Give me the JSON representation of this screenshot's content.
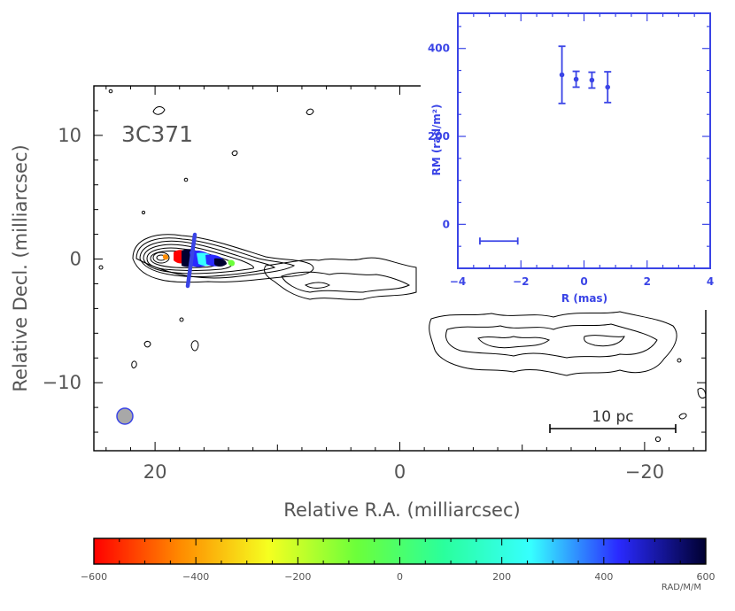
{
  "chart_data": [
    {
      "type": "contour-map",
      "title": "",
      "source_label": "3C371",
      "xlabel": "Relative R.A. (milliarcsec)",
      "ylabel": "Relative Decl. (milliarcsec)",
      "xlim": [
        25,
        -25
      ],
      "ylim": [
        -15.5,
        14
      ],
      "x_ticks": [
        20,
        0,
        -20
      ],
      "y_ticks": [
        10,
        0,
        -10
      ],
      "scalebar_label": "10 pc",
      "colorbar": {
        "min": -600,
        "max": 600,
        "ticks": [
          -600,
          -400,
          -200,
          0,
          200,
          400,
          600
        ],
        "unit": "RAD/M/M",
        "colors": [
          "#ff0000",
          "#ff8c00",
          "#f5ff20",
          "#6cff3a",
          "#2aff9c",
          "#36ffff",
          "#2a2aff",
          "#000030"
        ]
      },
      "beam_color": "#a8a8a8",
      "cut_color": "#3a44e6"
    },
    {
      "type": "scatter",
      "title": "",
      "xlabel": "R (mas)",
      "ylabel": "RM (rad/m²)",
      "xlim": [
        -4,
        4
      ],
      "ylim": [
        -100,
        480
      ],
      "x_ticks": [
        -4,
        -2,
        0,
        2,
        4
      ],
      "y_ticks": [
        0,
        200,
        400
      ],
      "color": "#3a44e6",
      "points": [
        {
          "x": -0.7,
          "y": 340,
          "err": 65
        },
        {
          "x": -0.25,
          "y": 330,
          "err": 18
        },
        {
          "x": 0.25,
          "y": 328,
          "err": 18
        },
        {
          "x": 0.75,
          "y": 312,
          "err": 35
        }
      ],
      "bar_segment": {
        "x1": -3.3,
        "x2": -2.1,
        "y": -38
      }
    }
  ]
}
